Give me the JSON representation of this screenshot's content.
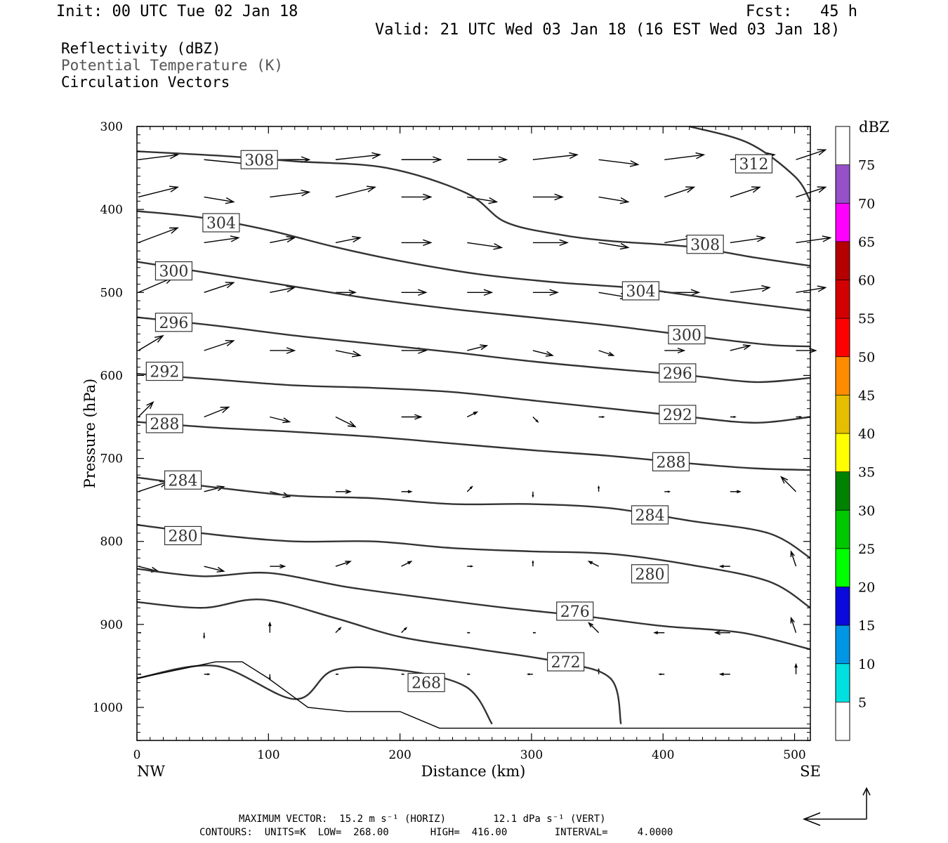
{
  "header": {
    "init": "Init: 00 UTC Tue 02 Jan 18",
    "fcst": "Fcst:   45 h",
    "valid": "Valid: 21 UTC Wed 03 Jan 18 (16 EST Wed 03 Jan 18)"
  },
  "legend_lines": {
    "reflectivity": "Reflectivity (dBZ)",
    "theta": "Potential Temperature (K)",
    "vectors": "Circulation Vectors"
  },
  "colorbar": {
    "title": "dBZ",
    "labels": [
      "5",
      "10",
      "15",
      "20",
      "25",
      "30",
      "35",
      "40",
      "45",
      "50",
      "55",
      "60",
      "65",
      "70",
      "75"
    ],
    "colors": [
      "#ffffff",
      "#00e0e0",
      "#0096e6",
      "#0a0adc",
      "#00ff00",
      "#00c800",
      "#008200",
      "#ffff00",
      "#e6be00",
      "#ff8c00",
      "#ff0000",
      "#d20000",
      "#b40000",
      "#ff00ff",
      "#9650c8",
      "#ffffff"
    ]
  },
  "footer": {
    "max_vector": "MAXIMUM VECTOR:  15.2 m s⁻¹ (HORIZ)        12.1 dPa s⁻¹ (VERT)",
    "contours": "CONTOURS:  UNITS=K  LOW=  268.00       HIGH=  416.00        INTERVAL=     4.0000"
  },
  "chart_data": {
    "type": "line",
    "title": "",
    "xlabel": "Distance (km)",
    "ylabel": "Pressure (hPa)",
    "x_end_labels": [
      "NW",
      "SE"
    ],
    "xlim": [
      0,
      512
    ],
    "ylim": [
      300,
      1040
    ],
    "y_inverted": true,
    "x_ticks": [
      0,
      100,
      200,
      300,
      400,
      500
    ],
    "y_ticks": [
      300,
      400,
      500,
      600,
      700,
      800,
      900,
      1000
    ],
    "grid": false,
    "contour_interval": 4,
    "series": [
      {
        "name": "312",
        "label_at": [
          469,
          345
        ],
        "x": [
          420,
          465,
          500,
          512
        ],
        "y": [
          300,
          320,
          360,
          390
        ]
      },
      {
        "name": "308",
        "label_at": [
          93,
          340
        ],
        "x": [
          0,
          60,
          120,
          190,
          250,
          280,
          320,
          360,
          420,
          470,
          512
        ],
        "y": [
          330,
          335,
          342,
          350,
          380,
          415,
          430,
          438,
          445,
          458,
          468
        ]
      },
      {
        "name": "308",
        "label_at": [
          432,
          442
        ],
        "x": [],
        "y": []
      },
      {
        "name": "304",
        "label_at": [
          64,
          416
        ],
        "x": [
          0,
          50,
          100,
          150,
          200,
          260,
          320,
          380,
          440,
          512
        ],
        "y": [
          402,
          410,
          425,
          445,
          462,
          478,
          488,
          495,
          508,
          522
        ]
      },
      {
        "name": "304",
        "label_at": [
          383,
          498
        ],
        "x": [],
        "y": []
      },
      {
        "name": "300",
        "label_at": [
          28,
          474
        ],
        "x": [
          0,
          60,
          120,
          180,
          240,
          300,
          360,
          420,
          480,
          512
        ],
        "y": [
          463,
          478,
          493,
          508,
          520,
          530,
          540,
          552,
          563,
          565
        ]
      },
      {
        "name": "300",
        "label_at": [
          418,
          551
        ],
        "x": [],
        "y": []
      },
      {
        "name": "296",
        "label_at": [
          28,
          536
        ],
        "x": [
          0,
          60,
          120,
          180,
          240,
          300,
          360,
          420,
          470,
          512
        ],
        "y": [
          530,
          540,
          552,
          562,
          572,
          583,
          592,
          600,
          608,
          603
        ]
      },
      {
        "name": "296",
        "label_at": [
          411,
          597
        ],
        "x": [],
        "y": []
      },
      {
        "name": "292",
        "label_at": [
          21,
          595
        ],
        "x": [
          0,
          60,
          120,
          180,
          240,
          300,
          360,
          420,
          470,
          512
        ],
        "y": [
          598,
          605,
          612,
          615,
          620,
          630,
          640,
          650,
          657,
          650
        ]
      },
      {
        "name": "292",
        "label_at": [
          411,
          647
        ],
        "x": [],
        "y": []
      },
      {
        "name": "288",
        "label_at": [
          21,
          658
        ],
        "x": [
          0,
          60,
          120,
          180,
          240,
          300,
          360,
          420,
          470,
          512
        ],
        "y": [
          656,
          663,
          668,
          674,
          682,
          690,
          697,
          706,
          712,
          714
        ]
      },
      {
        "name": "288",
        "label_at": [
          406,
          704
        ],
        "x": [],
        "y": []
      },
      {
        "name": "284",
        "label_at": [
          35,
          726
        ],
        "x": [
          0,
          60,
          120,
          180,
          240,
          300,
          360,
          420,
          480,
          512
        ],
        "y": [
          723,
          735,
          745,
          748,
          755,
          755,
          760,
          775,
          790,
          820
        ]
      },
      {
        "name": "284",
        "label_at": [
          390,
          768
        ],
        "x": [],
        "y": []
      },
      {
        "name": "280",
        "label_at": [
          35,
          793
        ],
        "x": [
          0,
          60,
          120,
          180,
          240,
          300,
          360,
          420,
          480,
          512
        ],
        "y": [
          780,
          792,
          800,
          800,
          808,
          812,
          815,
          828,
          848,
          880
        ]
      },
      {
        "name": "280",
        "label_at": [
          390,
          839
        ],
        "x": [],
        "y": []
      },
      {
        "name": "276",
        "label_at": [
          333,
          884
        ],
        "x": [
          0,
          50,
          100,
          160,
          220,
          280,
          340,
          400,
          460,
          512
        ],
        "y": [
          833,
          842,
          838,
          855,
          868,
          880,
          890,
          902,
          910,
          930
        ]
      },
      {
        "name": "272",
        "label_at": [
          326,
          945
        ],
        "x": [
          0,
          50,
          95,
          150,
          200,
          260,
          320,
          360,
          368
        ],
        "y": [
          873,
          880,
          870,
          892,
          915,
          930,
          945,
          965,
          1020
        ]
      },
      {
        "name": "268",
        "label_at": [
          220,
          970
        ],
        "x": [
          0,
          60,
          120,
          150,
          200,
          250,
          270
        ],
        "y": [
          965,
          950,
          990,
          955,
          955,
          975,
          1020
        ]
      }
    ],
    "vectors": {
      "description": "circulation vectors (horizontal, vertical components)",
      "rows": [
        {
          "p": 340,
          "x": [
            0,
            50,
            100,
            150,
            200,
            250,
            300,
            350,
            400,
            450,
            500
          ],
          "u": [
            8,
            10,
            8,
            9,
            8,
            8,
            9,
            8,
            8,
            9,
            6
          ],
          "w": [
            -1,
            1,
            0,
            -1,
            0,
            0,
            -1,
            1,
            -1,
            -1,
            -2
          ]
        },
        {
          "p": 385,
          "x": [
            0,
            50,
            100,
            150,
            200,
            250,
            300,
            350,
            400,
            450,
            500
          ],
          "u": [
            8,
            6,
            8,
            8,
            6,
            6,
            6,
            6,
            6,
            6,
            6
          ],
          "w": [
            -2,
            1,
            -1,
            -2,
            0,
            1,
            0,
            1,
            -2,
            -2,
            -2
          ]
        },
        {
          "p": 440,
          "x": [
            0,
            50,
            100,
            150,
            200,
            250,
            300,
            350,
            400,
            450,
            500
          ],
          "u": [
            8,
            7,
            5,
            5,
            6,
            7,
            7,
            6,
            6,
            7,
            7
          ],
          "w": [
            -3,
            -1,
            -1,
            -1,
            0,
            1,
            0,
            1,
            -1,
            -1,
            -1
          ]
        },
        {
          "p": 500,
          "x": [
            0,
            50,
            100,
            150,
            200,
            250,
            300,
            350,
            400,
            450,
            500
          ],
          "u": [
            7,
            6,
            5,
            4,
            5,
            5,
            5,
            6,
            7,
            8,
            6
          ],
          "w": [
            -3,
            -2,
            -1,
            0,
            0,
            0,
            0,
            1,
            0,
            -1,
            -1
          ]
        },
        {
          "p": 570,
          "x": [
            0,
            50,
            100,
            150,
            200,
            250,
            300,
            350,
            400,
            450,
            500
          ],
          "u": [
            5,
            6,
            5,
            5,
            5,
            4,
            4,
            3,
            4,
            4,
            4
          ],
          "w": [
            -3,
            -2,
            0,
            1,
            0,
            -1,
            1,
            1,
            0,
            -1,
            0
          ]
        },
        {
          "p": 650,
          "x": [
            0,
            50,
            100,
            150,
            200,
            250,
            300,
            350,
            400,
            450,
            500
          ],
          "u": [
            3,
            5,
            4,
            4,
            4,
            2,
            1,
            1,
            1,
            1,
            1
          ],
          "w": [
            -3,
            -2,
            1,
            2,
            0,
            -1,
            1,
            0,
            0,
            0,
            0
          ]
        },
        {
          "p": 740,
          "x": [
            0,
            50,
            100,
            150,
            200,
            250,
            300,
            350,
            400,
            450,
            500
          ],
          "u": [
            6,
            4,
            4,
            3,
            2,
            1,
            0,
            0,
            1,
            2,
            -3
          ],
          "w": [
            -2,
            -1,
            1,
            0,
            0,
            -1,
            1,
            -1,
            0,
            0,
            -3
          ]
        },
        {
          "p": 830,
          "x": [
            0,
            50,
            100,
            150,
            200,
            250,
            300,
            350,
            400,
            450,
            500
          ],
          "u": [
            4,
            4,
            3,
            3,
            2,
            1,
            0,
            -2,
            -2,
            -2,
            -1
          ],
          "w": [
            1,
            1,
            0,
            -1,
            -1,
            0,
            -1,
            -1,
            0,
            0,
            -3
          ]
        },
        {
          "p": 910,
          "x": [
            0,
            50,
            100,
            150,
            200,
            250,
            300,
            350,
            400,
            450,
            500
          ],
          "u": [
            0,
            0,
            0,
            1,
            1,
            0,
            0,
            -2,
            -2,
            -3,
            -1
          ],
          "w": [
            0,
            1,
            -2,
            -1,
            -1,
            0,
            0,
            -2,
            0,
            0,
            -3
          ]
        },
        {
          "p": 960,
          "x": [
            0,
            50,
            100,
            150,
            200,
            250,
            300,
            350,
            400,
            450,
            500
          ],
          "u": [
            0,
            1,
            0,
            0,
            0,
            0,
            -1,
            0,
            -1,
            -2,
            0
          ],
          "w": [
            0,
            0,
            1,
            0,
            0,
            0,
            0,
            -1,
            0,
            0,
            -2
          ]
        }
      ]
    },
    "terrain": {
      "x": [
        0,
        30,
        60,
        80,
        100,
        130,
        160,
        200,
        230,
        260,
        300,
        400,
        512
      ],
      "y": [
        965,
        955,
        945,
        945,
        965,
        1000,
        1005,
        1005,
        1025,
        1025,
        1025,
        1025,
        1025
      ]
    }
  }
}
